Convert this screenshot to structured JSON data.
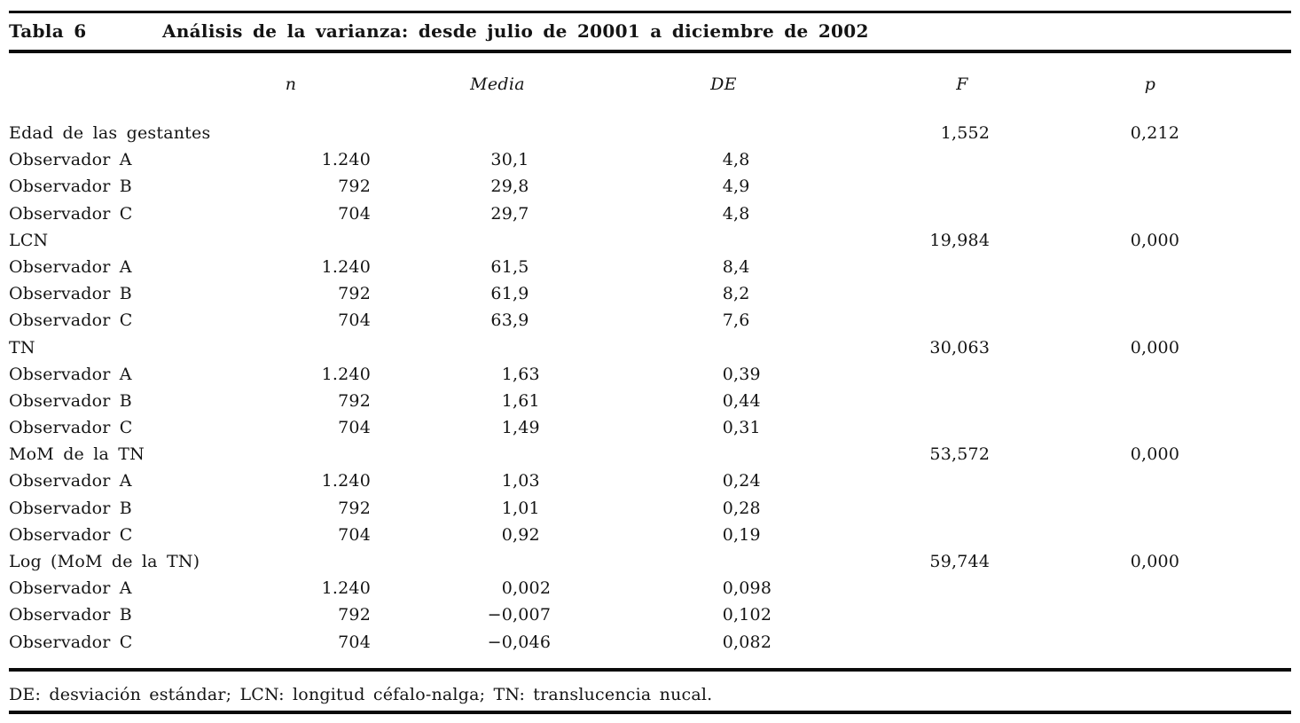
{
  "table": {
    "label": "Tabla 6",
    "title": "Análisis de la varianza: desde julio de 20001 a diciembre de 2002",
    "columns": [
      "n",
      "Media",
      "DE",
      "F",
      "p"
    ],
    "rows": [
      {
        "label": "Edad de las gestantes",
        "n": "",
        "media": "",
        "de": "",
        "f": "1,552",
        "p": "0,212"
      },
      {
        "label": "Observador A",
        "n": "1.240",
        "media": "30,1",
        "de": "4,8",
        "f": "",
        "p": ""
      },
      {
        "label": "Observador B",
        "n": "792",
        "media": "29,8",
        "de": "4,9",
        "f": "",
        "p": ""
      },
      {
        "label": "Observador C",
        "n": "704",
        "media": "29,7",
        "de": "4,8",
        "f": "",
        "p": ""
      },
      {
        "label": "LCN",
        "n": "",
        "media": "",
        "de": "",
        "f": "19,984",
        "p": "0,000"
      },
      {
        "label": "Observador A",
        "n": "1.240",
        "media": "61,5",
        "de": "8,4",
        "f": "",
        "p": ""
      },
      {
        "label": "Observador B",
        "n": "792",
        "media": "61,9",
        "de": "8,2",
        "f": "",
        "p": ""
      },
      {
        "label": "Observador C",
        "n": "704",
        "media": "63,9",
        "de": "7,6",
        "f": "",
        "p": ""
      },
      {
        "label": "TN",
        "n": "",
        "media": "",
        "de": "",
        "f": "30,063",
        "p": "0,000"
      },
      {
        "label": "Observador A",
        "n": "1.240",
        "media": "1,63",
        "de": "0,39",
        "f": "",
        "p": ""
      },
      {
        "label": "Observador B",
        "n": "792",
        "media": "1,61",
        "de": "0,44",
        "f": "",
        "p": ""
      },
      {
        "label": "Observador C",
        "n": "704",
        "media": "1,49",
        "de": "0,31",
        "f": "",
        "p": ""
      },
      {
        "label": "MoM de la TN",
        "n": "",
        "media": "",
        "de": "",
        "f": "53,572",
        "p": "0,000"
      },
      {
        "label": "Observador A",
        "n": "1.240",
        "media": "1,03",
        "de": "0,24",
        "f": "",
        "p": ""
      },
      {
        "label": "Observador B",
        "n": "792",
        "media": "1,01",
        "de": "0,28",
        "f": "",
        "p": ""
      },
      {
        "label": "Observador C",
        "n": "704",
        "media": "0,92",
        "de": "0,19",
        "f": "",
        "p": ""
      },
      {
        "label": "Log (MoM de la TN)",
        "n": "",
        "media": "",
        "de": "",
        "f": "59,744",
        "p": "0,000"
      },
      {
        "label": "Observador A",
        "n": "1.240",
        "media": "0,002",
        "de": "0,098",
        "f": "",
        "p": ""
      },
      {
        "label": "Observador B",
        "n": "792",
        "media": "−0,007",
        "de": "0,102",
        "f": "",
        "p": ""
      },
      {
        "label": "Observador C",
        "n": "704",
        "media": "−0,046",
        "de": "0,082",
        "f": "",
        "p": ""
      }
    ],
    "footnote": "DE: desviación estándar; LCN: longitud céfalo-nalga; TN: translucencia nucal.",
    "text_color": "#141414",
    "rule_color": "#0a0a0a"
  }
}
